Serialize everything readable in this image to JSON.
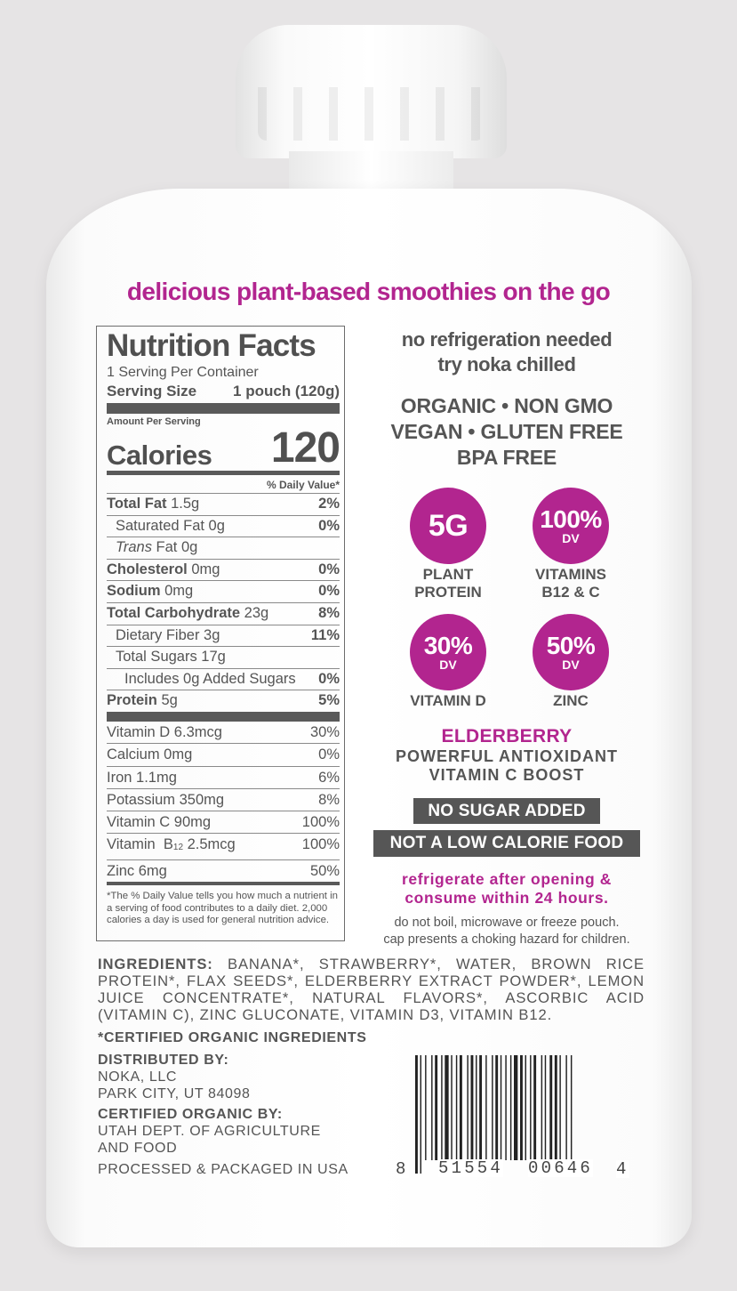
{
  "tagline": "delicious plant-based smoothies on the go",
  "nutrition": {
    "title": "Nutrition Facts",
    "servings_per_container": "1 Serving Per Container",
    "serving_size_label": "Serving Size",
    "serving_size_value": "1 pouch (120g)",
    "amount_per_serving": "Amount Per Serving",
    "calories_label": "Calories",
    "calories_value": "120",
    "daily_value_header": "% Daily Value*",
    "rows": [
      {
        "name": "Total Fat",
        "amount": "1.5g",
        "dv": "2%"
      },
      {
        "name": "Saturated Fat 0g",
        "dv": "0%"
      },
      {
        "name_italic": "Trans",
        "name_rest": "Fat 0g"
      },
      {
        "name": "Cholesterol",
        "amount": "0mg",
        "dv": "0%"
      },
      {
        "name": "Sodium",
        "amount": "0mg",
        "dv": "0%"
      },
      {
        "name": "Total Carbohydrate",
        "amount": "23g",
        "dv": "8%"
      },
      {
        "name": "Dietary Fiber 3g",
        "dv": "11%"
      },
      {
        "name": "Total Sugars 17g"
      },
      {
        "name": "Includes 0g Added Sugars",
        "dv": "0%"
      },
      {
        "name": "Protein",
        "amount": "5g",
        "dv": "5%"
      }
    ],
    "vitamins": [
      {
        "name": "Vitamin D 6.3mcg",
        "dv": "30%"
      },
      {
        "name": "Calcium 0mg",
        "dv": "0%"
      },
      {
        "name": "Iron 1.1mg",
        "dv": "6%"
      },
      {
        "name": "Potassium 350mg",
        "dv": "8%"
      },
      {
        "name": "Vitamin C 90mg",
        "dv": "100%"
      },
      {
        "name_prefix": "Vitamin  B",
        "name_sub": "12",
        "name_suffix": " 2.5mcg",
        "dv": "100%"
      },
      {
        "name": "Zinc 6mg",
        "dv": "50%"
      }
    ],
    "footnote": "*The % Daily Value tells you how much a nutrient in a serving of food contributes to a daily diet. 2,000 calories a day is used for general nutrition advice."
  },
  "right": {
    "storage_line1": "no refrigeration needed",
    "storage_line2": "try noka chilled",
    "claims_line1": "ORGANIC • NON GMO",
    "claims_line2": "VEGAN • GLUTEN FREE",
    "claims_line3": "BPA FREE",
    "badges": [
      {
        "big": "5G",
        "small": "",
        "label1": "PLANT",
        "label2": "PROTEIN"
      },
      {
        "big": "100%",
        "small": "DV",
        "label1": "VITAMINS",
        "label2": "B12 & C"
      },
      {
        "big": "30%",
        "small": "DV",
        "label1": "VITAMIN D",
        "label2": ""
      },
      {
        "big": "50%",
        "small": "DV",
        "label1": "ZINC",
        "label2": ""
      }
    ],
    "elderberry_title": "ELDERBERRY",
    "elderberry_line1": "POWERFUL ANTIOXIDANT",
    "elderberry_line2": "VITAMIN C BOOST",
    "no_sugar": "NO SUGAR ADDED",
    "not_low_cal": "NOT A LOW CALORIE FOOD",
    "refrigerate_line1": "refrigerate after opening &",
    "refrigerate_line2": "consume within 24 hours.",
    "caution_line1": "do not boil, microwave or freeze pouch.",
    "caution_line2": "cap presents a choking hazard for children."
  },
  "ingredients": {
    "label": "INGREDIENTS:",
    "text": "BANANA*, STRAWBERRY*, WATER, BROWN RICE PROTEIN*, FLAX SEEDS*, ELDERBERRY EXTRACT POWDER*, LEMON JUICE CONCENTRATE*, NATURAL FLAVORS*, ASCORBIC ACID (VITAMIN C), ZINC GLUCONATE, VITAMIN D3, VITAMIN B12.",
    "certified": "*CERTIFIED ORGANIC INGREDIENTS"
  },
  "distributor": {
    "label": "DISTRIBUTED BY:",
    "line1": "NOKA, LLC",
    "line2": "PARK CITY, UT 84098"
  },
  "certifier": {
    "label": "CERTIFIED ORGANIC BY:",
    "line1": "UTAH DEPT. OF AGRICULTURE",
    "line2": "AND FOOD"
  },
  "origin": "PROCESSED & PACKAGED IN USA",
  "barcode": {
    "lead": "8",
    "left": "51554",
    "right": "00646",
    "check": "4"
  },
  "colors": {
    "brand_magenta": "#b2258f",
    "text_gray": "#555555",
    "box_gray": "#565656"
  }
}
